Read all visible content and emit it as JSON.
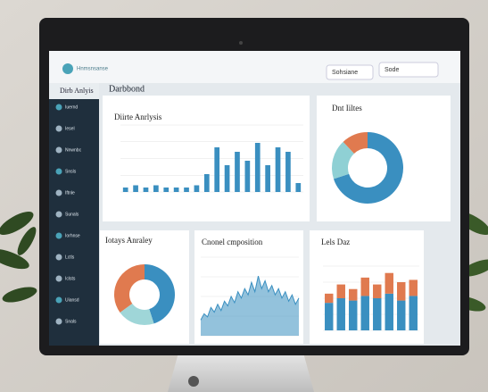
{
  "app": {
    "logo": "Hnmsnsanse",
    "sidebar_title": "Dirb Anlyis",
    "page_title": "Darbbond",
    "buttons": [
      "Sohsiane",
      "Sode"
    ],
    "nav": [
      "Iuernd",
      "Iesel",
      "Nnwnbc",
      "Snsls",
      "Iftnle",
      "Sunals",
      "Iorhnse",
      "Lctls",
      "Iclsts",
      "Uiansd",
      "Snals"
    ]
  },
  "cards": [
    {
      "title": "Diirte Anrlysis",
      "chart": {
        "type": "bar",
        "color": "#3a8fc0",
        "values": [
          2,
          3,
          2,
          3,
          2,
          2,
          2,
          3,
          8,
          20,
          12,
          18,
          14,
          22,
          12,
          20,
          18,
          4
        ],
        "ylim": [
          0,
          30
        ]
      }
    },
    {
      "title": "Dnt Iiltes",
      "chart": {
        "type": "donut",
        "values": [
          70,
          18,
          12
        ],
        "colors": [
          "#3a8fc0",
          "#8fd0d4",
          "#e07a4f"
        ]
      }
    },
    {
      "title": "Iotays Anraley",
      "chart": {
        "type": "donut",
        "values": [
          45,
          20,
          35
        ],
        "colors": [
          "#3a8fc0",
          "#9fd6d8",
          "#e07a4f"
        ]
      }
    },
    {
      "title": "Cnonel cmposition",
      "chart": {
        "type": "area",
        "color": "#3a8fc0",
        "values": [
          10,
          14,
          12,
          18,
          15,
          20,
          16,
          22,
          19,
          25,
          21,
          28,
          24,
          30,
          26,
          34,
          28,
          38,
          30,
          35,
          28,
          32,
          26,
          30,
          24,
          28,
          22,
          26,
          20,
          24
        ],
        "ylim": [
          0,
          50
        ]
      }
    },
    {
      "title": "Lels Daz",
      "chart": {
        "type": "stack",
        "ylim": [
          0,
          28
        ],
        "series": [
          {
            "color": "#3a8fc0",
            "values": [
              12,
              14,
              13,
              15,
              14,
              16,
              13,
              15
            ]
          },
          {
            "color": "#e07a4f",
            "values": [
              4,
              6,
              5,
              8,
              6,
              9,
              8,
              7
            ]
          }
        ]
      }
    }
  ]
}
